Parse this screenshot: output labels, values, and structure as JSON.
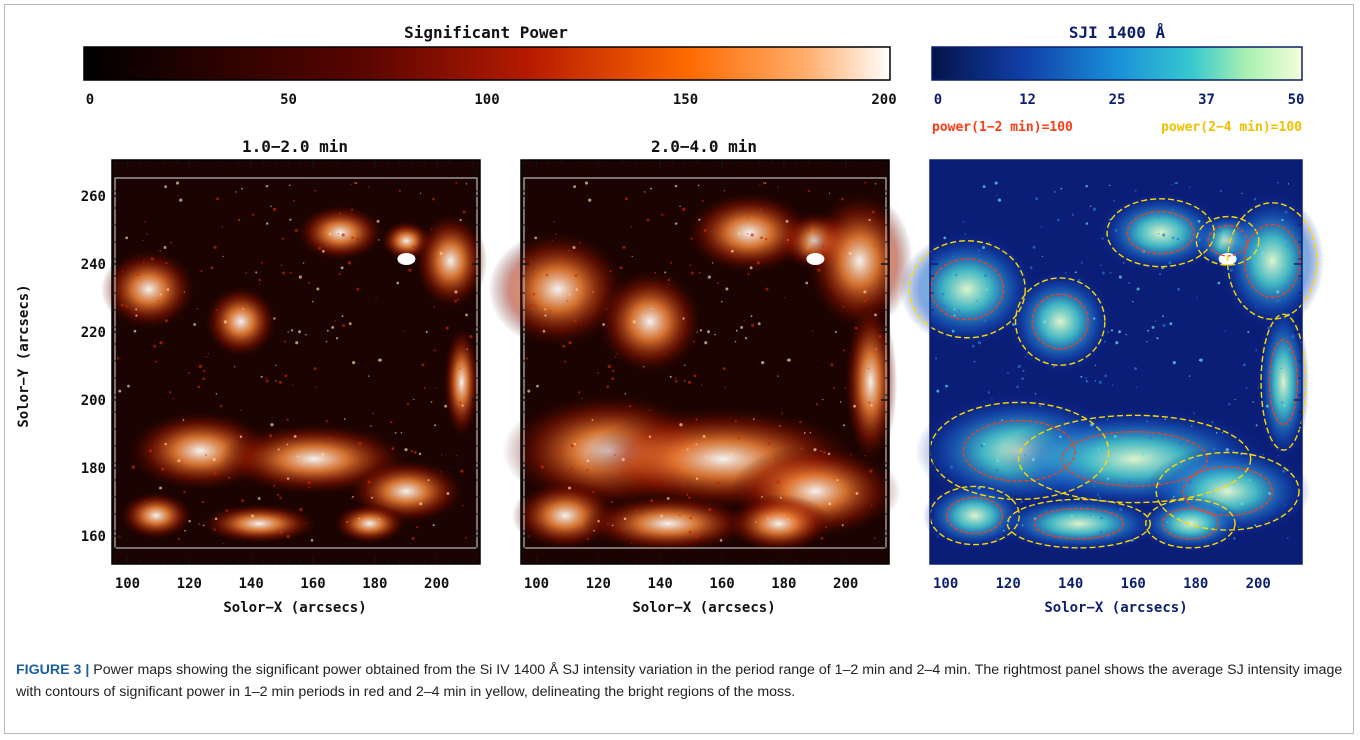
{
  "figure": {
    "colorbar_power": {
      "title": "Significant Power",
      "ticks": [
        "0",
        "50",
        "100",
        "150",
        "200"
      ],
      "colors": [
        "#000000",
        "#8a0a00",
        "#ff5a00",
        "#ffffff"
      ]
    },
    "colorbar_sji": {
      "title": "SJI 1400 Å",
      "ticks": [
        "0",
        "12",
        "25",
        "37",
        "50"
      ],
      "colors": [
        "#05124a",
        "#1a64d0",
        "#22c0e0",
        "#f0ffd0"
      ]
    },
    "contour_legend": {
      "red": "power(1−2 min)=100",
      "yellow": "power(2−4 min)=100"
    },
    "panels": [
      {
        "title": "1.0−2.0 min",
        "xlabel": "Solor−X (arcsecs)"
      },
      {
        "title": "2.0−4.0 min",
        "xlabel": "Solor−X (arcsecs)"
      },
      {
        "title": "",
        "xlabel": "Solor−X (arcsecs)"
      }
    ],
    "ylabel": "Solor−Y (arcsecs)",
    "x_ticks": [
      "100",
      "120",
      "140",
      "160",
      "180",
      "200"
    ],
    "y_ticks": [
      "260",
      "240",
      "220",
      "200",
      "180",
      "160"
    ],
    "colors": {
      "red_contour": "#ff3b14",
      "yellow_contour": "#ffd700",
      "sji_tick": "#0d1e6e"
    }
  },
  "caption": {
    "label": "FIGURE 3 |",
    "text": "Power maps showing the significant power obtained from the Si IV 1400 Å SJ intensity variation in the period range of 1–2 min and 2–4 min. The rightmost panel shows the average SJ intensity image with contours of significant power in 1–2 min periods in red and 2–4 min in yellow, delineating the bright regions of the moss."
  }
}
